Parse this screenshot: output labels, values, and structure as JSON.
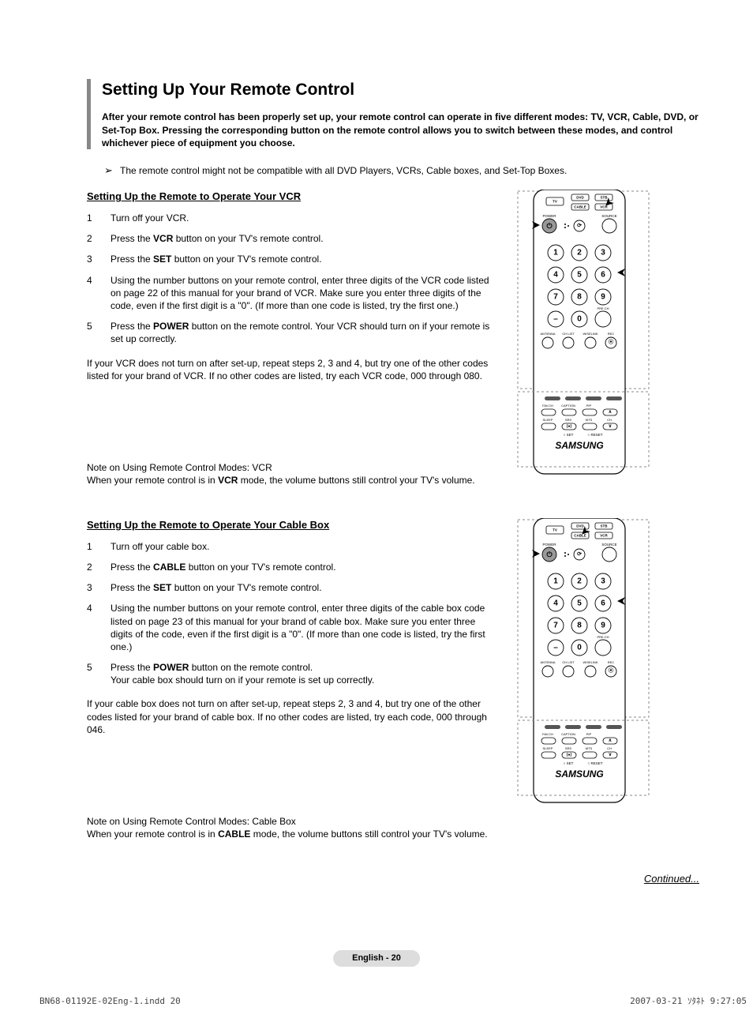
{
  "title": "Setting Up Your Remote Control",
  "intro": "After your remote control has been properly set up, your remote control can operate in five different modes: TV, VCR, Cable, DVD, or Set-Top Box. Pressing the corresponding button on the remote control allows you to switch between these modes, and control whichever piece of equipment you choose.",
  "compat_note": "The remote control might not be compatible with all DVD Players, VCRs, Cable boxes, and Set-Top Boxes.",
  "vcr": {
    "heading": "Setting Up the Remote to Operate Your VCR",
    "steps": {
      "s1": "Turn off your VCR.",
      "s2a": "Press the ",
      "s2b": "VCR",
      "s2c": " button on your TV's remote control.",
      "s3a": "Press the ",
      "s3b": "SET",
      "s3c": " button on your TV's remote control.",
      "s4": "Using the number buttons on your remote control, enter three digits of the VCR code listed on page 22 of this manual for your brand of VCR. Make sure you enter three digits of the code, even if the first digit is a \"0\". (If more than one code is listed, try the first one.)",
      "s5a": "Press the ",
      "s5b": "POWER",
      "s5c": " button on the remote control. Your VCR should turn on if your remote is set up correctly."
    },
    "fallback": "If your VCR does not turn on after set-up, repeat steps 2, 3 and 4, but try one of the other codes listed for your brand of VCR. If no other codes are listed, try each VCR code, 000 through 080.",
    "note1": "Note on Using Remote Control Modes: VCR",
    "note2a": "When your remote control is in ",
    "note2b": "VCR",
    "note2c": " mode, the volume buttons still control your TV's volume."
  },
  "cable": {
    "heading": "Setting Up the Remote to Operate Your Cable Box",
    "steps": {
      "s1": "Turn off your cable box.",
      "s2a": "Press the ",
      "s2b": "CABLE",
      "s2c": " button on your TV's remote control.",
      "s3a": "Press the ",
      "s3b": "SET",
      "s3c": " button on your TV's remote control.",
      "s4": "Using the number buttons on your remote control, enter three digits of the cable box code listed on page 23 of this manual for your brand of cable box. Make sure you enter three digits of the code, even if the first digit is a \"0\". (If more than one code is listed, try the first one.)",
      "s5a": "Press the ",
      "s5b": "POWER",
      "s5c": " button on the remote control.",
      "s5d": "Your cable box should turn on if your remote is set up correctly."
    },
    "fallback": "If your cable box does not turn on after set-up, repeat steps 2, 3 and 4, but try one of the other codes listed for your brand of cable box. If no other codes are listed, try each code, 000 through 046.",
    "note1": "Note on Using Remote Control Modes: Cable Box",
    "note2a": "When your remote control is in ",
    "note2b": "CABLE",
    "note2c": " mode, the volume buttons still control your TV's volume."
  },
  "continued": "Continued...",
  "page_number": "English - 20",
  "footer_left": "BN68-01192E-02Eng-1.indd   20",
  "footer_right": "2007-03-21   ｿﾀﾈﾄ 9:27:05",
  "remote": {
    "buttons": {
      "tv": "TV",
      "dvd": "DVD",
      "stb": "STB",
      "cable": "CABLE",
      "vcr": "VCR",
      "power": "POWER",
      "source": "SOURCE",
      "antenna": "ANTENNA",
      "chlist": "CH LIST",
      "wiselink": "WISELINK",
      "rec": "REC",
      "favch": "FAV.CH",
      "caption": "CAPTION",
      "pip": "PIP",
      "sleep": "SLEEP",
      "srs": "SRS",
      "mts": "MTS",
      "ch": "CH",
      "set": "SET",
      "reset": "RESET",
      "prech": "PRE.CH"
    },
    "brand": "SAMSUNG",
    "highlight_vcr": {
      "top": "VCR",
      "mode": "vcr"
    },
    "highlight_cable": {
      "top": "CABLE",
      "mode": "cable"
    },
    "colors": {
      "outline": "#000000",
      "dash": "#888888",
      "power": "#999999",
      "arrow": "#000000",
      "fill": "#ffffff"
    }
  }
}
